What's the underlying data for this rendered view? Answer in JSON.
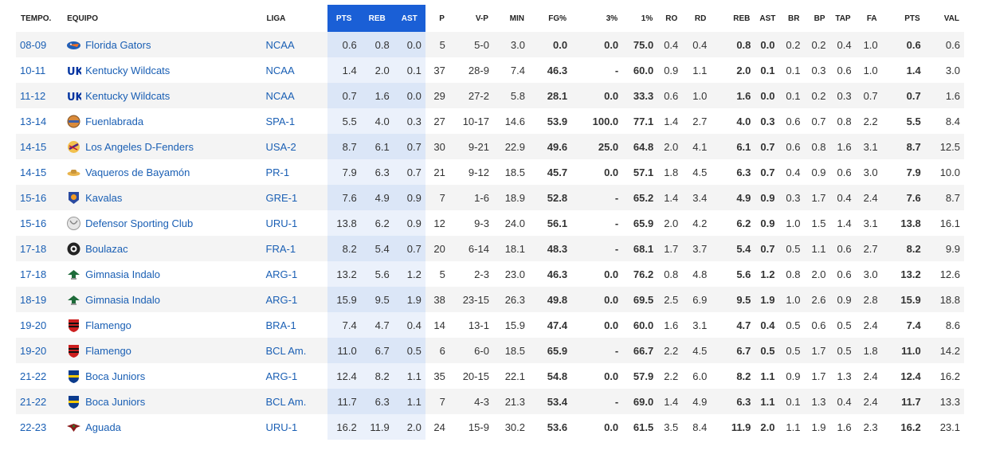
{
  "headers": {
    "season": "TEMPO.",
    "team": "EQUIPO",
    "league": "LIGA",
    "pts_hl": "PTS",
    "reb_hl": "REB",
    "ast_hl": "AST",
    "games": "P",
    "wl": "V-P",
    "min": "MIN",
    "fg": "FG%",
    "three": "3%",
    "ft": "1%",
    "ro": "RO",
    "rd": "RD",
    "reb": "REB",
    "ast": "AST",
    "br": "BR",
    "bp": "BP",
    "tap": "TAP",
    "fa": "FA",
    "pts": "PTS",
    "val": "VAL"
  },
  "rows": [
    {
      "season": "08-09",
      "team": "Florida Gators",
      "logo": "gator-icon",
      "league": "NCAA",
      "pts_hl": "0.6",
      "reb_hl": "0.8",
      "ast_hl": "0.0",
      "games": "5",
      "wl": "5-0",
      "min": "3.0",
      "fg": "0.0",
      "three": "0.0",
      "ft": "75.0",
      "ro": "0.4",
      "rd": "0.4",
      "reb": "0.8",
      "ast": "0.0",
      "br": "0.2",
      "bp": "0.2",
      "tap": "0.4",
      "fa": "1.0",
      "pts": "0.6",
      "val": "0.6"
    },
    {
      "season": "10-11",
      "team": "Kentucky Wildcats",
      "logo": "uk-icon",
      "league": "NCAA",
      "pts_hl": "1.4",
      "reb_hl": "2.0",
      "ast_hl": "0.1",
      "games": "37",
      "wl": "28-9",
      "min": "7.4",
      "fg": "46.3",
      "three": "-",
      "ft": "60.0",
      "ro": "0.9",
      "rd": "1.1",
      "reb": "2.0",
      "ast": "0.1",
      "br": "0.1",
      "bp": "0.3",
      "tap": "0.6",
      "fa": "1.0",
      "pts": "1.4",
      "val": "3.0"
    },
    {
      "season": "11-12",
      "team": "Kentucky Wildcats",
      "logo": "uk-icon",
      "league": "NCAA",
      "pts_hl": "0.7",
      "reb_hl": "1.6",
      "ast_hl": "0.0",
      "games": "29",
      "wl": "27-2",
      "min": "5.8",
      "fg": "28.1",
      "three": "0.0",
      "ft": "33.3",
      "ro": "0.6",
      "rd": "1.0",
      "reb": "1.6",
      "ast": "0.0",
      "br": "0.1",
      "bp": "0.2",
      "tap": "0.3",
      "fa": "0.7",
      "pts": "0.7",
      "val": "1.6"
    },
    {
      "season": "13-14",
      "team": "Fuenlabrada",
      "logo": "fuenlabrada-icon",
      "league": "SPA-1",
      "pts_hl": "5.5",
      "reb_hl": "4.0",
      "ast_hl": "0.3",
      "games": "27",
      "wl": "10-17",
      "min": "14.6",
      "fg": "53.9",
      "three": "100.0",
      "ft": "77.1",
      "ro": "1.4",
      "rd": "2.7",
      "reb": "4.0",
      "ast": "0.3",
      "br": "0.6",
      "bp": "0.7",
      "tap": "0.8",
      "fa": "2.2",
      "pts": "5.5",
      "val": "8.4"
    },
    {
      "season": "14-15",
      "team": "Los Angeles D-Fenders",
      "logo": "dfenders-icon",
      "league": "USA-2",
      "pts_hl": "8.7",
      "reb_hl": "6.1",
      "ast_hl": "0.7",
      "games": "30",
      "wl": "9-21",
      "min": "22.9",
      "fg": "49.6",
      "three": "25.0",
      "ft": "64.8",
      "ro": "2.0",
      "rd": "4.1",
      "reb": "6.1",
      "ast": "0.7",
      "br": "0.6",
      "bp": "0.8",
      "tap": "1.6",
      "fa": "3.1",
      "pts": "8.7",
      "val": "12.5"
    },
    {
      "season": "14-15",
      "team": "Vaqueros de Bayamón",
      "logo": "vaqueros-icon",
      "league": "PR-1",
      "pts_hl": "7.9",
      "reb_hl": "6.3",
      "ast_hl": "0.7",
      "games": "21",
      "wl": "9-12",
      "min": "18.5",
      "fg": "45.7",
      "three": "0.0",
      "ft": "57.1",
      "ro": "1.8",
      "rd": "4.5",
      "reb": "6.3",
      "ast": "0.7",
      "br": "0.4",
      "bp": "0.9",
      "tap": "0.6",
      "fa": "3.0",
      "pts": "7.9",
      "val": "10.0"
    },
    {
      "season": "15-16",
      "team": "Kavalas",
      "logo": "kavalas-icon",
      "league": "GRE-1",
      "pts_hl": "7.6",
      "reb_hl": "4.9",
      "ast_hl": "0.9",
      "games": "7",
      "wl": "1-6",
      "min": "18.9",
      "fg": "52.8",
      "three": "-",
      "ft": "65.2",
      "ro": "1.4",
      "rd": "3.4",
      "reb": "4.9",
      "ast": "0.9",
      "br": "0.3",
      "bp": "1.7",
      "tap": "0.4",
      "fa": "2.4",
      "pts": "7.6",
      "val": "8.7"
    },
    {
      "season": "15-16",
      "team": "Defensor Sporting Club",
      "logo": "defensor-icon",
      "league": "URU-1",
      "pts_hl": "13.8",
      "reb_hl": "6.2",
      "ast_hl": "0.9",
      "games": "12",
      "wl": "9-3",
      "min": "24.0",
      "fg": "56.1",
      "three": "-",
      "ft": "65.9",
      "ro": "2.0",
      "rd": "4.2",
      "reb": "6.2",
      "ast": "0.9",
      "br": "1.0",
      "bp": "1.5",
      "tap": "1.4",
      "fa": "3.1",
      "pts": "13.8",
      "val": "16.1"
    },
    {
      "season": "17-18",
      "team": "Boulazac",
      "logo": "boulazac-icon",
      "league": "FRA-1",
      "pts_hl": "8.2",
      "reb_hl": "5.4",
      "ast_hl": "0.7",
      "games": "20",
      "wl": "6-14",
      "min": "18.1",
      "fg": "48.3",
      "three": "-",
      "ft": "68.1",
      "ro": "1.7",
      "rd": "3.7",
      "reb": "5.4",
      "ast": "0.7",
      "br": "0.5",
      "bp": "1.1",
      "tap": "0.6",
      "fa": "2.7",
      "pts": "8.2",
      "val": "9.9"
    },
    {
      "season": "17-18",
      "team": "Gimnasia Indalo",
      "logo": "gimnasia-icon",
      "league": "ARG-1",
      "pts_hl": "13.2",
      "reb_hl": "5.6",
      "ast_hl": "1.2",
      "games": "5",
      "wl": "2-3",
      "min": "23.0",
      "fg": "46.3",
      "three": "0.0",
      "ft": "76.2",
      "ro": "0.8",
      "rd": "4.8",
      "reb": "5.6",
      "ast": "1.2",
      "br": "0.8",
      "bp": "2.0",
      "tap": "0.6",
      "fa": "3.0",
      "pts": "13.2",
      "val": "12.6"
    },
    {
      "season": "18-19",
      "team": "Gimnasia Indalo",
      "logo": "gimnasia-icon",
      "league": "ARG-1",
      "pts_hl": "15.9",
      "reb_hl": "9.5",
      "ast_hl": "1.9",
      "games": "38",
      "wl": "23-15",
      "min": "26.3",
      "fg": "49.8",
      "three": "0.0",
      "ft": "69.5",
      "ro": "2.5",
      "rd": "6.9",
      "reb": "9.5",
      "ast": "1.9",
      "br": "1.0",
      "bp": "2.6",
      "tap": "0.9",
      "fa": "2.8",
      "pts": "15.9",
      "val": "18.8"
    },
    {
      "season": "19-20",
      "team": "Flamengo",
      "logo": "flamengo-icon",
      "league": "BRA-1",
      "pts_hl": "7.4",
      "reb_hl": "4.7",
      "ast_hl": "0.4",
      "games": "14",
      "wl": "13-1",
      "min": "15.9",
      "fg": "47.4",
      "three": "0.0",
      "ft": "60.0",
      "ro": "1.6",
      "rd": "3.1",
      "reb": "4.7",
      "ast": "0.4",
      "br": "0.5",
      "bp": "0.6",
      "tap": "0.5",
      "fa": "2.4",
      "pts": "7.4",
      "val": "8.6"
    },
    {
      "season": "19-20",
      "team": "Flamengo",
      "logo": "flamengo-icon",
      "league": "BCL Am.",
      "pts_hl": "11.0",
      "reb_hl": "6.7",
      "ast_hl": "0.5",
      "games": "6",
      "wl": "6-0",
      "min": "18.5",
      "fg": "65.9",
      "three": "-",
      "ft": "66.7",
      "ro": "2.2",
      "rd": "4.5",
      "reb": "6.7",
      "ast": "0.5",
      "br": "0.5",
      "bp": "1.7",
      "tap": "0.5",
      "fa": "1.8",
      "pts": "11.0",
      "val": "14.2"
    },
    {
      "season": "21-22",
      "team": "Boca Juniors",
      "logo": "boca-icon",
      "league": "ARG-1",
      "pts_hl": "12.4",
      "reb_hl": "8.2",
      "ast_hl": "1.1",
      "games": "35",
      "wl": "20-15",
      "min": "22.1",
      "fg": "54.8",
      "three": "0.0",
      "ft": "57.9",
      "ro": "2.2",
      "rd": "6.0",
      "reb": "8.2",
      "ast": "1.1",
      "br": "0.9",
      "bp": "1.7",
      "tap": "1.3",
      "fa": "2.4",
      "pts": "12.4",
      "val": "16.2"
    },
    {
      "season": "21-22",
      "team": "Boca Juniors",
      "logo": "boca-icon",
      "league": "BCL Am.",
      "pts_hl": "11.7",
      "reb_hl": "6.3",
      "ast_hl": "1.1",
      "games": "7",
      "wl": "4-3",
      "min": "21.3",
      "fg": "53.4",
      "three": "-",
      "ft": "69.0",
      "ro": "1.4",
      "rd": "4.9",
      "reb": "6.3",
      "ast": "1.1",
      "br": "0.1",
      "bp": "1.3",
      "tap": "0.4",
      "fa": "2.4",
      "pts": "11.7",
      "val": "13.3"
    },
    {
      "season": "22-23",
      "team": "Aguada",
      "logo": "aguada-icon",
      "league": "URU-1",
      "pts_hl": "16.2",
      "reb_hl": "11.9",
      "ast_hl": "2.0",
      "games": "24",
      "wl": "15-9",
      "min": "30.2",
      "fg": "53.6",
      "three": "0.0",
      "ft": "61.5",
      "ro": "3.5",
      "rd": "8.4",
      "reb": "11.9",
      "ast": "2.0",
      "br": "1.1",
      "bp": "1.9",
      "tap": "1.6",
      "fa": "2.3",
      "pts": "16.2",
      "val": "23.1"
    }
  ],
  "colors": {
    "header_highlight": "#1a5fd6",
    "link": "#1a5fb4",
    "highlight_odd": "#dbe6f7",
    "highlight_even": "#ebf1fb"
  }
}
